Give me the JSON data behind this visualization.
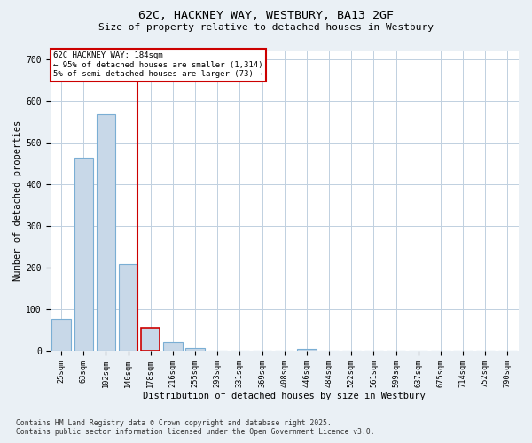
{
  "title1": "62C, HACKNEY WAY, WESTBURY, BA13 2GF",
  "title2": "Size of property relative to detached houses in Westbury",
  "xlabel": "Distribution of detached houses by size in Westbury",
  "ylabel": "Number of detached properties",
  "categories": [
    "25sqm",
    "63sqm",
    "102sqm",
    "140sqm",
    "178sqm",
    "216sqm",
    "255sqm",
    "293sqm",
    "331sqm",
    "369sqm",
    "408sqm",
    "446sqm",
    "484sqm",
    "522sqm",
    "561sqm",
    "599sqm",
    "637sqm",
    "675sqm",
    "714sqm",
    "752sqm",
    "790sqm"
  ],
  "bar_heights": [
    77,
    463,
    567,
    208,
    55,
    20,
    5,
    0,
    0,
    0,
    0,
    4,
    0,
    0,
    0,
    0,
    0,
    0,
    0,
    0,
    0
  ],
  "bar_fill": "#c8d8e8",
  "bar_edge": "#7aaed4",
  "highlight_index": 4,
  "highlight_edge": "#cc0000",
  "vline_color": "#cc0000",
  "ann_title": "62C HACKNEY WAY: 184sqm",
  "ann_line1": "← 95% of detached houses are smaller (1,314)",
  "ann_line2": "5% of semi-detached houses are larger (73) →",
  "ann_box_edgecolor": "#cc0000",
  "ylim": [
    0,
    720
  ],
  "yticks": [
    0,
    100,
    200,
    300,
    400,
    500,
    600,
    700
  ],
  "fig_bg": "#eaf0f5",
  "plot_bg": "#ffffff",
  "grid_color": "#c0d0e0",
  "footer1": "Contains HM Land Registry data © Crown copyright and database right 2025.",
  "footer2": "Contains public sector information licensed under the Open Government Licence v3.0."
}
